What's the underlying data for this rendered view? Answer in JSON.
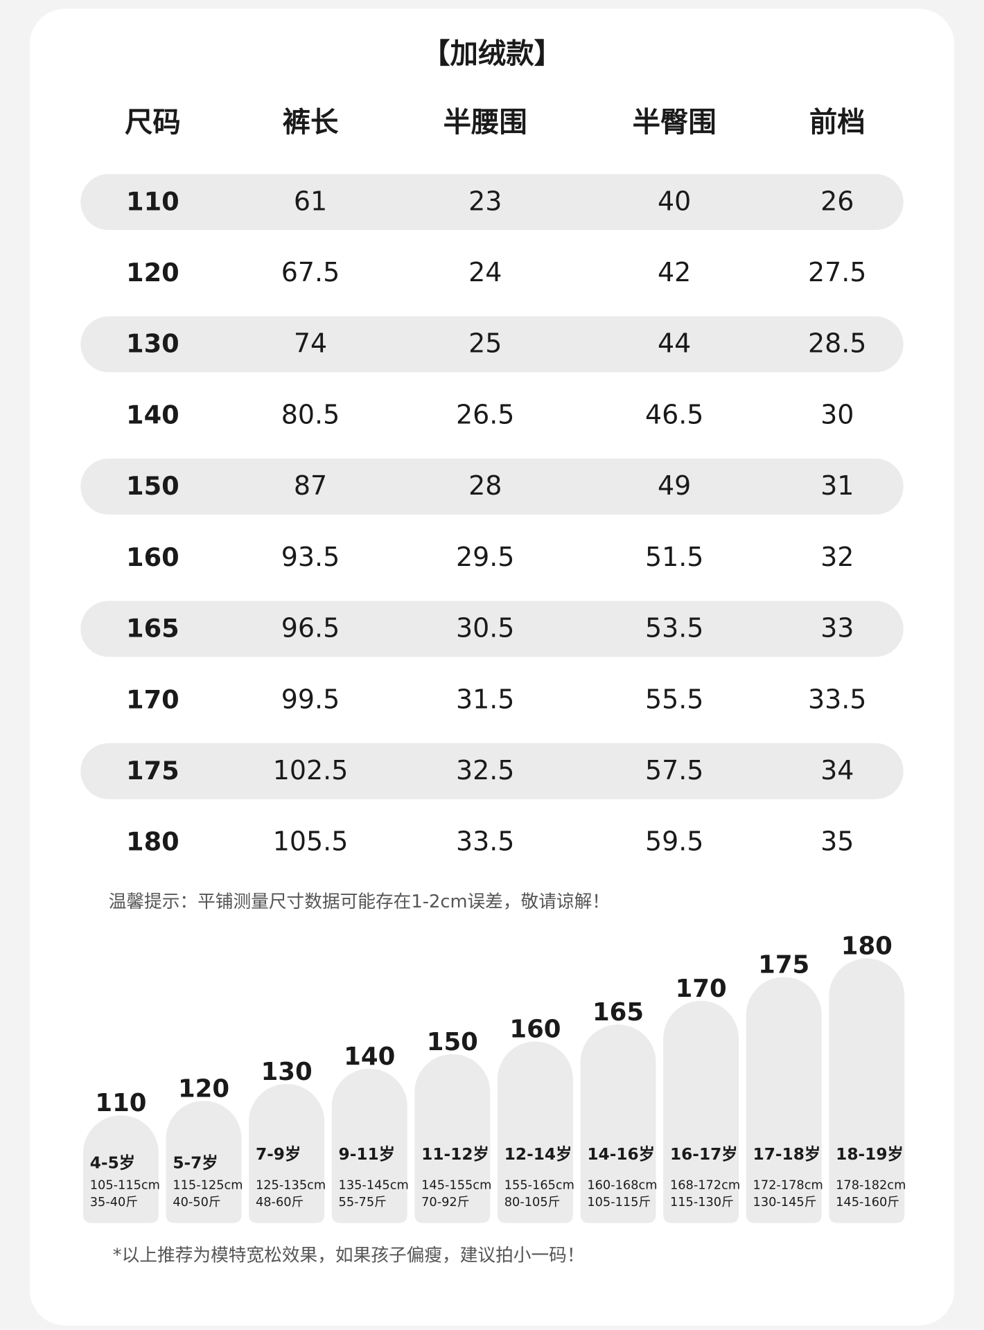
{
  "title": "【加绒款】",
  "table": {
    "header": [
      "尺码",
      "裤长",
      "半腰围",
      "半臀围",
      "前档"
    ],
    "rows": [
      [
        "110",
        "61",
        "23",
        "40",
        "26"
      ],
      [
        "120",
        "67.5",
        "24",
        "42",
        "27.5"
      ],
      [
        "130",
        "74",
        "25",
        "44",
        "28.5"
      ],
      [
        "140",
        "80.5",
        "26.5",
        "46.5",
        "30"
      ],
      [
        "150",
        "87",
        "28",
        "49",
        "31"
      ],
      [
        "160",
        "93.5",
        "29.5",
        "51.5",
        "32"
      ],
      [
        "165",
        "96.5",
        "30.5",
        "53.5",
        "33"
      ],
      [
        "170",
        "99.5",
        "31.5",
        "55.5",
        "33.5"
      ],
      [
        "175",
        "102.5",
        "32.5",
        "57.5",
        "34"
      ],
      [
        "180",
        "105.5",
        "33.5",
        "59.5",
        "35"
      ]
    ]
  },
  "note": "温馨提示：平铺测量尺寸数据可能存在1-2cm误差，敬请谅解！",
  "sizes": [
    {
      "size": "110",
      "age": "4-5岁",
      "height": "105-115cm",
      "weight": "35-40斤"
    },
    {
      "size": "120",
      "age": "5-7岁",
      "height": "115-125cm",
      "weight": "40-50斤"
    },
    {
      "size": "130",
      "age": "7-9岁",
      "height": "125-135cm",
      "weight": "48-60斤"
    },
    {
      "size": "140",
      "age": "9-11岁",
      "height": "135-145cm",
      "weight": "55-75斤"
    },
    {
      "size": "150",
      "age": "11-12岁",
      "height": "145-155cm",
      "weight": "70-92斤"
    },
    {
      "size": "160",
      "age": "12-14岁",
      "height": "155-165cm",
      "weight": "80-105斤"
    },
    {
      "size": "165",
      "age": "14-16岁",
      "height": "160-168cm",
      "weight": "105-115斤"
    },
    {
      "size": "170",
      "age": "16-17岁",
      "height": "168-172cm",
      "weight": "115-130斤"
    },
    {
      "size": "175",
      "age": "17-18岁",
      "height": "172-178cm",
      "weight": "130-145斤"
    },
    {
      "size": "180",
      "age": "18-19岁",
      "height": "178-182cm",
      "weight": "145-160斤"
    }
  ],
  "footer": "*以上推荐为模特宽松效果，如果孩子偏瘦，建议拍小一码！"
}
